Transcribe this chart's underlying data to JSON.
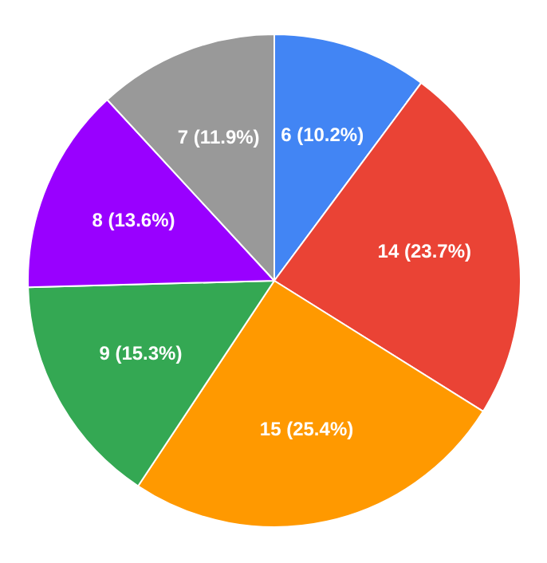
{
  "chart_data": {
    "type": "pie",
    "categories": [
      null,
      null,
      null,
      null,
      null,
      null
    ],
    "values": [
      6,
      14,
      15,
      9,
      8,
      7
    ],
    "colors": [
      "#4285f4",
      "#ea4335",
      "#ff9900",
      "#34a853",
      "#9900ff",
      "#999999"
    ],
    "value_labels": [
      "6 (10.2%)",
      "14 (23.7%)",
      "15 (25.4%)",
      "9 (15.3%)",
      "8 (13.6%)",
      "7 (11.9%)"
    ],
    "legend": false
  }
}
